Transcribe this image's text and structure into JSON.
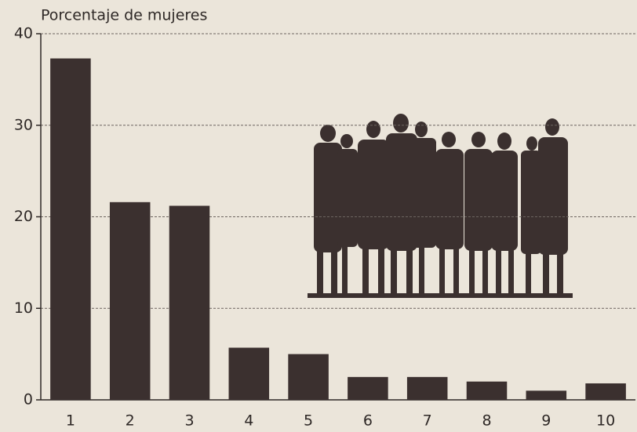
{
  "chart_data": {
    "type": "bar",
    "y_label": "Porcentaje de mujeres",
    "categories": [
      "1",
      "2",
      "3",
      "4",
      "5",
      "6",
      "7",
      "8",
      "9",
      "10"
    ],
    "values": [
      37.3,
      21.6,
      21.2,
      5.7,
      5.0,
      2.5,
      2.5,
      2.0,
      1.0,
      1.8
    ],
    "color": "#3b302f",
    "ylim": [
      0,
      40
    ],
    "yticks": [
      0,
      10,
      20,
      30,
      40
    ],
    "grid": true
  }
}
